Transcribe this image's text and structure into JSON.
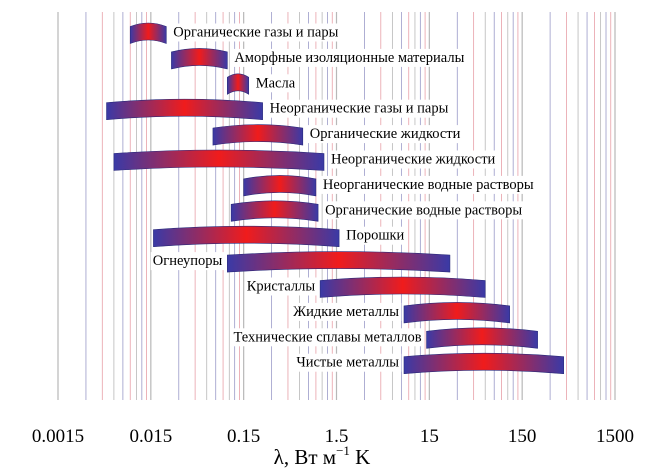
{
  "chart_data": {
    "type": "range-bar",
    "xscale": "log",
    "xlim": [
      0.0015,
      1500
    ],
    "xlabel": {
      "main": "λ, Вт м",
      "sup": "−1",
      "tail": " K"
    },
    "x_ticks": [
      {
        "value": 0.0015,
        "label": "0.0015"
      },
      {
        "value": 0.015,
        "label": "0.015"
      },
      {
        "value": 0.15,
        "label": "0.15"
      },
      {
        "value": 1.5,
        "label": "1.5"
      },
      {
        "value": 15,
        "label": "15"
      },
      {
        "value": 150,
        "label": "150"
      },
      {
        "value": 1500,
        "label": "1500"
      }
    ],
    "colors": {
      "bar_end": "#3a3aa6",
      "bar_center": "#f01c1c",
      "grid_gray": "#b8b8b8",
      "grid_blue": "#9a9ac8",
      "grid_red": "#e8a0a8"
    },
    "grid": "vertical",
    "series": [
      {
        "name": "Органические газы и пары",
        "min": 0.009,
        "max": 0.022,
        "label_side": "right"
      },
      {
        "name": "Аморфные изоляционные материалы",
        "min": 0.025,
        "max": 0.1,
        "label_side": "right"
      },
      {
        "name": "Масла",
        "min": 0.1,
        "max": 0.17,
        "label_side": "right"
      },
      {
        "name": "Неорганические газы и пары",
        "min": 0.005,
        "max": 0.24,
        "label_side": "right"
      },
      {
        "name": "Органические жидкости",
        "min": 0.07,
        "max": 0.65,
        "label_side": "right"
      },
      {
        "name": "Неорганические жидкости",
        "min": 0.006,
        "max": 1.1,
        "label_side": "right"
      },
      {
        "name": "Неорганические водные растворы",
        "min": 0.15,
        "max": 0.9,
        "label_side": "right"
      },
      {
        "name": "Органические водные растворы",
        "min": 0.11,
        "max": 0.95,
        "label_side": "right"
      },
      {
        "name": "Порошки",
        "min": 0.016,
        "max": 1.6,
        "label_side": "right"
      },
      {
        "name": "Огнеупоры",
        "min": 0.1,
        "max": 25,
        "label_side": "left"
      },
      {
        "name": "Кристаллы",
        "min": 1.0,
        "max": 60,
        "label_side": "left"
      },
      {
        "name": "Жидкие металлы",
        "min": 8,
        "max": 110,
        "label_side": "left"
      },
      {
        "name": "Технические сплавы металлов",
        "min": 14,
        "max": 220,
        "label_side": "left"
      },
      {
        "name": "Чистые металлы",
        "min": 8,
        "max": 420,
        "label_side": "left"
      }
    ]
  }
}
